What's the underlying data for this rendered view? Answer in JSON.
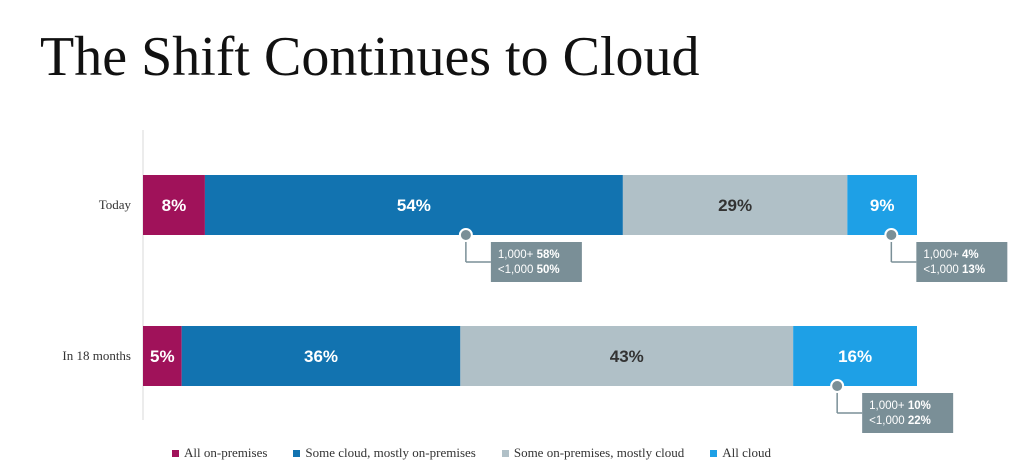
{
  "page": {
    "title": "The Shift Continues to Cloud"
  },
  "chart_data": {
    "type": "bar",
    "orientation": "horizontal",
    "stacked": true,
    "percent": true,
    "categories": [
      "Today",
      "In 18 months"
    ],
    "series": [
      {
        "name": "All on-premises",
        "color": "#a0125a",
        "values": [
          8,
          5
        ]
      },
      {
        "name": "Some cloud, mostly on-premises",
        "color": "#1273b0",
        "values": [
          54,
          36
        ]
      },
      {
        "name": "Some on-premises, mostly cloud",
        "color": "#b0c0c7",
        "values": [
          29,
          43
        ]
      },
      {
        "name": "All cloud",
        "color": "#1ea0e6",
        "values": [
          9,
          16
        ]
      }
    ],
    "data_labels": [
      [
        "8%",
        "54%",
        "29%",
        "9%"
      ],
      [
        "5%",
        "36%",
        "43%",
        "16%"
      ]
    ],
    "label_colors": [
      "#ffffff",
      "#ffffff",
      "#333333",
      "#ffffff"
    ],
    "callouts": [
      {
        "category": "Today",
        "series": "Some cloud, mostly on-premises",
        "lines": [
          {
            "prefix": "1,000+ ",
            "value": "58%"
          },
          {
            "prefix": "<1,000 ",
            "value": "50%"
          }
        ]
      },
      {
        "category": "Today",
        "series": "All cloud",
        "lines": [
          {
            "prefix": "1,000+ ",
            "value": "4%"
          },
          {
            "prefix": "<1,000 ",
            "value": "13%"
          }
        ]
      },
      {
        "category": "In 18 months",
        "series": "All cloud",
        "lines": [
          {
            "prefix": "1,000+ ",
            "value": "10%"
          },
          {
            "prefix": "<1,000 ",
            "value": "22%"
          }
        ]
      }
    ],
    "callout_color": "#7a8f97",
    "legend_position": "bottom",
    "grid": false
  }
}
